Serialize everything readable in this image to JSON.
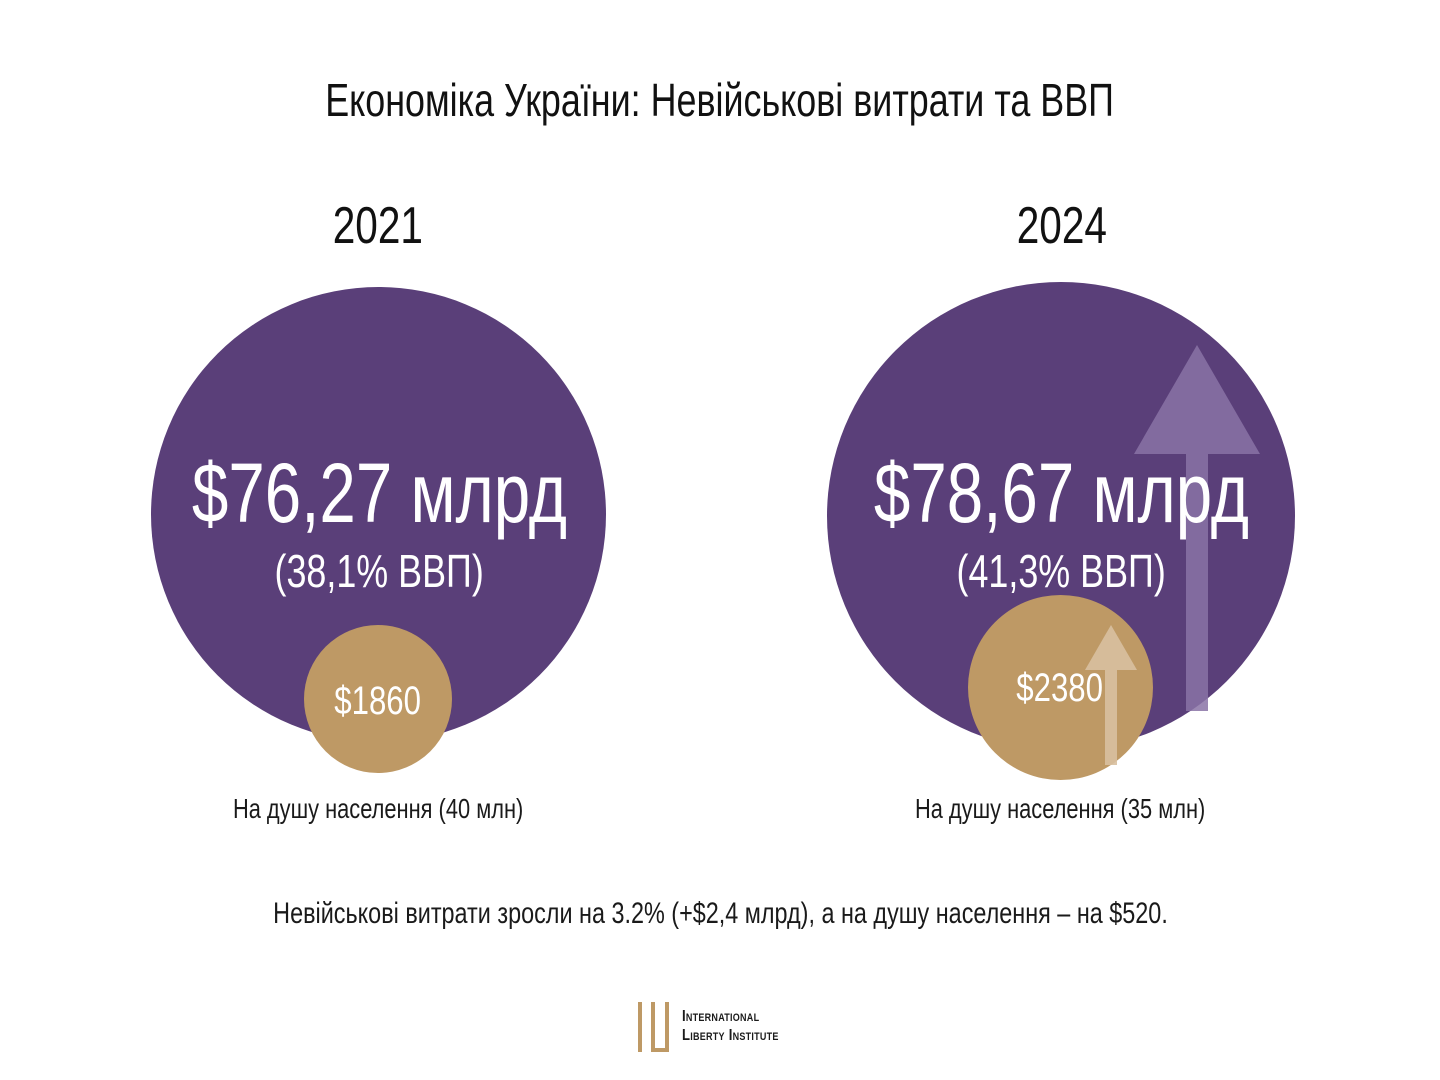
{
  "title": "Економіка України: Невійськові витрати та ВВП",
  "chart_data": {
    "type": "bubble",
    "title": "Економіка України: Невійськові витрати та ВВП",
    "categories": [
      "2021",
      "2024"
    ],
    "series": [
      {
        "values": [
          76.27,
          78.67
        ],
        "labels": [
          "$76,27 млрд",
          "$78,67 млрд"
        ]
      },
      {
        "values": [
          38.1,
          41.3
        ],
        "labels": [
          "(38,1% ВВП)",
          "(41,3% ВВП)"
        ]
      },
      {
        "values": [
          1860,
          2380
        ],
        "labels": [
          "$1860",
          "$2380"
        ]
      }
    ],
    "captions": [
      "На душу населення (40 млн)",
      "На душу населення (35 млн)"
    ],
    "summary": "Невійськові витрати зросли на 3.2% (+$2,4 млрд), а на душу населення – на $520.",
    "colors": {
      "total": "#5a3f79",
      "per_capita": "#be9965",
      "arrow_total": "#8a73a6",
      "arrow_per_capita": "#d8c0a0"
    }
  },
  "logo": {
    "line1": "International",
    "line2": "Liberty Institute",
    "icon": "ili-logo-icon"
  }
}
